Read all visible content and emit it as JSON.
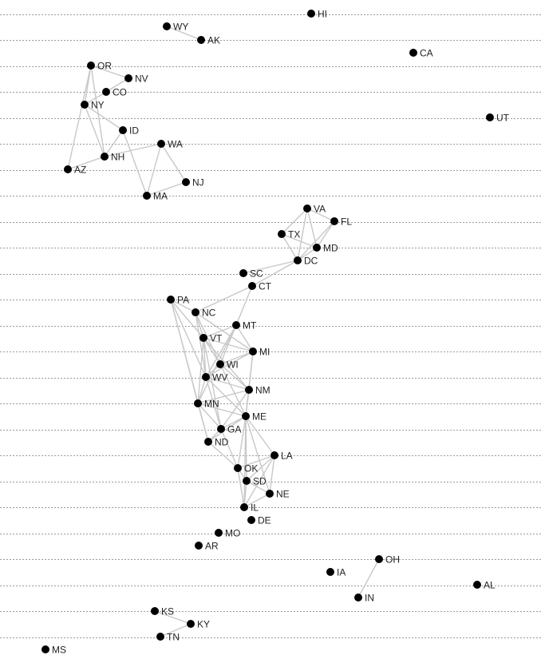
{
  "diagram": {
    "colors": {
      "node": "#000000",
      "label": "#222222",
      "edge": "#c8c8c8",
      "grid": "#9a9a9a"
    },
    "nodes": [
      {
        "id": "HI",
        "label": "HI"
      },
      {
        "id": "WY",
        "label": "WY"
      },
      {
        "id": "AK",
        "label": "AK"
      },
      {
        "id": "CA",
        "label": "CA"
      },
      {
        "id": "OR",
        "label": "OR"
      },
      {
        "id": "NV",
        "label": "NV"
      },
      {
        "id": "CO",
        "label": "CO"
      },
      {
        "id": "NY",
        "label": "NY"
      },
      {
        "id": "UT",
        "label": "UT"
      },
      {
        "id": "ID",
        "label": "ID"
      },
      {
        "id": "WA",
        "label": "WA"
      },
      {
        "id": "NH",
        "label": "NH"
      },
      {
        "id": "AZ",
        "label": "AZ"
      },
      {
        "id": "NJ",
        "label": "NJ"
      },
      {
        "id": "MA",
        "label": "MA"
      },
      {
        "id": "VA",
        "label": "VA"
      },
      {
        "id": "FL",
        "label": "FL"
      },
      {
        "id": "TX",
        "label": "TX"
      },
      {
        "id": "MD",
        "label": "MD"
      },
      {
        "id": "DC",
        "label": "DC"
      },
      {
        "id": "SC",
        "label": "SC"
      },
      {
        "id": "CT",
        "label": "CT"
      },
      {
        "id": "PA",
        "label": "PA"
      },
      {
        "id": "NC",
        "label": "NC"
      },
      {
        "id": "MT",
        "label": "MT"
      },
      {
        "id": "VT",
        "label": "VT"
      },
      {
        "id": "MI",
        "label": "MI"
      },
      {
        "id": "WI",
        "label": "WI"
      },
      {
        "id": "WV",
        "label": "WV"
      },
      {
        "id": "NM",
        "label": "NM"
      },
      {
        "id": "MN",
        "label": "MN"
      },
      {
        "id": "ME",
        "label": "ME"
      },
      {
        "id": "GA",
        "label": "GA"
      },
      {
        "id": "ND",
        "label": "ND"
      },
      {
        "id": "LA",
        "label": "LA"
      },
      {
        "id": "OK",
        "label": "OK"
      },
      {
        "id": "SD",
        "label": "SD"
      },
      {
        "id": "NE",
        "label": "NE"
      },
      {
        "id": "IL",
        "label": "IL"
      },
      {
        "id": "DE",
        "label": "DE"
      },
      {
        "id": "MO",
        "label": "MO"
      },
      {
        "id": "AR",
        "label": "AR"
      },
      {
        "id": "OH",
        "label": "OH"
      },
      {
        "id": "IA",
        "label": "IA"
      },
      {
        "id": "AL",
        "label": "AL"
      },
      {
        "id": "IN",
        "label": "IN"
      },
      {
        "id": "KS",
        "label": "KS"
      },
      {
        "id": "KY",
        "label": "KY"
      },
      {
        "id": "TN",
        "label": "TN"
      },
      {
        "id": "MS",
        "label": "MS"
      }
    ],
    "edges": [
      [
        "WY",
        "AK"
      ],
      [
        "OR",
        "NV"
      ],
      [
        "OR",
        "NY"
      ],
      [
        "NV",
        "CO"
      ],
      [
        "CO",
        "NY"
      ],
      [
        "OR",
        "AZ"
      ],
      [
        "OR",
        "NH"
      ],
      [
        "NY",
        "ID"
      ],
      [
        "NY",
        "NH"
      ],
      [
        "ID",
        "NH"
      ],
      [
        "ID",
        "MA"
      ],
      [
        "NH",
        "WA"
      ],
      [
        "NH",
        "AZ"
      ],
      [
        "WA",
        "MA"
      ],
      [
        "WA",
        "NJ"
      ],
      [
        "MA",
        "NJ"
      ],
      [
        "VA",
        "FL"
      ],
      [
        "VA",
        "TX"
      ],
      [
        "VA",
        "MD"
      ],
      [
        "VA",
        "DC"
      ],
      [
        "FL",
        "MD"
      ],
      [
        "FL",
        "DC"
      ],
      [
        "TX",
        "MD"
      ],
      [
        "TX",
        "DC"
      ],
      [
        "MD",
        "DC"
      ],
      [
        "DC",
        "SC"
      ],
      [
        "DC",
        "CT"
      ],
      [
        "CT",
        "NC"
      ],
      [
        "CT",
        "MT"
      ],
      [
        "PA",
        "NC"
      ],
      [
        "PA",
        "VT"
      ],
      [
        "PA",
        "WV"
      ],
      [
        "PA",
        "MN"
      ],
      [
        "PA",
        "ND"
      ],
      [
        "NC",
        "VT"
      ],
      [
        "NC",
        "WV"
      ],
      [
        "NC",
        "WI"
      ],
      [
        "NC",
        "MI"
      ],
      [
        "MT",
        "VT"
      ],
      [
        "MT",
        "WV"
      ],
      [
        "MT",
        "MI"
      ],
      [
        "MT",
        "WI"
      ],
      [
        "MT",
        "MN"
      ],
      [
        "VT",
        "MI"
      ],
      [
        "VT",
        "WI"
      ],
      [
        "VT",
        "WV"
      ],
      [
        "VT",
        "NM"
      ],
      [
        "VT",
        "GA"
      ],
      [
        "VT",
        "MN"
      ],
      [
        "MI",
        "WI"
      ],
      [
        "MI",
        "WV"
      ],
      [
        "MI",
        "NM"
      ],
      [
        "MI",
        "ME"
      ],
      [
        "WI",
        "WV"
      ],
      [
        "WI",
        "NM"
      ],
      [
        "WI",
        "ME"
      ],
      [
        "WV",
        "NM"
      ],
      [
        "WV",
        "MN"
      ],
      [
        "WV",
        "GA"
      ],
      [
        "WV",
        "ME"
      ],
      [
        "NM",
        "MN"
      ],
      [
        "NM",
        "ME"
      ],
      [
        "NM",
        "GA"
      ],
      [
        "MN",
        "GA"
      ],
      [
        "MN",
        "ND"
      ],
      [
        "MN",
        "ME"
      ],
      [
        "ME",
        "GA"
      ],
      [
        "ME",
        "LA"
      ],
      [
        "ME",
        "OK"
      ],
      [
        "ME",
        "SD"
      ],
      [
        "ME",
        "NE"
      ],
      [
        "ME",
        "IL"
      ],
      [
        "ME",
        "ND"
      ],
      [
        "GA",
        "ND"
      ],
      [
        "GA",
        "OK"
      ],
      [
        "ND",
        "OK"
      ],
      [
        "LA",
        "OK"
      ],
      [
        "LA",
        "SD"
      ],
      [
        "LA",
        "NE"
      ],
      [
        "LA",
        "IL"
      ],
      [
        "OK",
        "SD"
      ],
      [
        "OK",
        "IL"
      ],
      [
        "SD",
        "IL"
      ],
      [
        "SD",
        "NE"
      ],
      [
        "NE",
        "IL"
      ],
      [
        "OH",
        "IN"
      ],
      [
        "KS",
        "KY"
      ],
      [
        "KY",
        "TN"
      ]
    ]
  }
}
